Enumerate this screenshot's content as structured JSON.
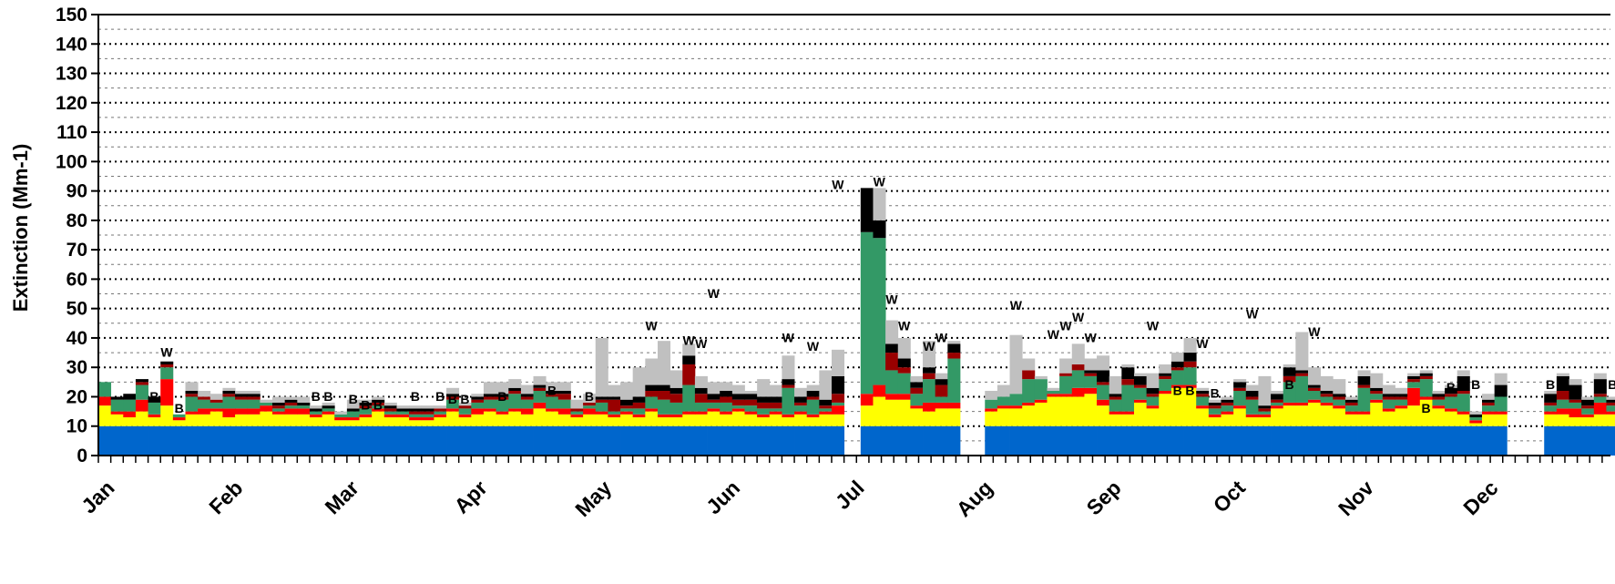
{
  "chart_data": {
    "type": "bar",
    "stacked": true,
    "ylabel": "Extinction (Mm-1)",
    "xlabel": "",
    "ylim": [
      0,
      150
    ],
    "yticks": [
      0,
      10,
      20,
      30,
      40,
      50,
      60,
      70,
      80,
      90,
      100,
      110,
      120,
      130,
      140,
      150
    ],
    "grid": true,
    "legend": "none",
    "months": [
      {
        "label": "Jan",
        "day": 1
      },
      {
        "label": "Feb",
        "day": 32
      },
      {
        "label": "Mar",
        "day": 60
      },
      {
        "label": "Apr",
        "day": 91
      },
      {
        "label": "May",
        "day": 121
      },
      {
        "label": "Jun",
        "day": 152
      },
      {
        "label": "Jul",
        "day": 182
      },
      {
        "label": "Aug",
        "day": 213
      },
      {
        "label": "Sep",
        "day": 244
      },
      {
        "label": "Oct",
        "day": 274
      },
      {
        "label": "Nov",
        "day": 305
      },
      {
        "label": "Dec",
        "day": 335
      }
    ],
    "sample_days": [
      1,
      4,
      7,
      10,
      13,
      16,
      19,
      22,
      25,
      28,
      31,
      34,
      37,
      40,
      43,
      46,
      49,
      52,
      55,
      58,
      61,
      64,
      67,
      70,
      73,
      76,
      79,
      82,
      85,
      88,
      91,
      94,
      97,
      100,
      103,
      106,
      109,
      112,
      115,
      118,
      121,
      124,
      127,
      130,
      133,
      136,
      139,
      142,
      145,
      148,
      151,
      154,
      157,
      160,
      163,
      166,
      169,
      172,
      175,
      178,
      185,
      188,
      191,
      194,
      197,
      200,
      203,
      206,
      215,
      218,
      221,
      224,
      227,
      230,
      233,
      236,
      239,
      242,
      245,
      248,
      251,
      254,
      257,
      260,
      263,
      266,
      269,
      272,
      275,
      278,
      281,
      284,
      287,
      290,
      293,
      296,
      299,
      302,
      305,
      308,
      311,
      314,
      317,
      320,
      323,
      326,
      329,
      332,
      335,
      338,
      350,
      353,
      356,
      359,
      362,
      365
    ],
    "series": [
      {
        "color": "#0066CC",
        "values": [
          10,
          10,
          10,
          10,
          10,
          10,
          10,
          10,
          10,
          10,
          10,
          10,
          10,
          10,
          10,
          10,
          10,
          10,
          10,
          10,
          10,
          10,
          10,
          10,
          10,
          10,
          10,
          10,
          10,
          10,
          10,
          10,
          10,
          10,
          10,
          10,
          10,
          10,
          10,
          10,
          10,
          10,
          10,
          10,
          10,
          10,
          10,
          10,
          10,
          10,
          10,
          10,
          10,
          10,
          10,
          10,
          10,
          10,
          10,
          10,
          10,
          10,
          10,
          10,
          10,
          10,
          10,
          10,
          10,
          10,
          10,
          10,
          10,
          10,
          10,
          10,
          10,
          10,
          10,
          10,
          10,
          10,
          10,
          10,
          10,
          10,
          10,
          10,
          10,
          10,
          10,
          10,
          10,
          10,
          10,
          10,
          10,
          10,
          10,
          10,
          10,
          10,
          10,
          10,
          10,
          10,
          10,
          10,
          10,
          10,
          10,
          10,
          10,
          10,
          10,
          10
        ]
      },
      {
        "color": "#FFFF00",
        "values": [
          7,
          4,
          3,
          5,
          3,
          7,
          2,
          4,
          4,
          5,
          3,
          4,
          4,
          5,
          4,
          4,
          4,
          3,
          4,
          2,
          2,
          3,
          5,
          3,
          3,
          2,
          2,
          3,
          5,
          3,
          4,
          5,
          4,
          5,
          4,
          6,
          5,
          4,
          3,
          4,
          4,
          3,
          4,
          3,
          5,
          3,
          3,
          4,
          4,
          5,
          4,
          5,
          4,
          3,
          4,
          3,
          4,
          3,
          4,
          4,
          7,
          10,
          9,
          9,
          6,
          5,
          6,
          6,
          5,
          6,
          6,
          7,
          8,
          10,
          10,
          10,
          11,
          7,
          4,
          4,
          8,
          6,
          11,
          13,
          13,
          6,
          3,
          4,
          6,
          3,
          3,
          6,
          7,
          7,
          8,
          7,
          6,
          4,
          4,
          8,
          5,
          6,
          7,
          9,
          6,
          5,
          4,
          1,
          4,
          4,
          4,
          4,
          3,
          3,
          4,
          4
        ]
      },
      {
        "color": "#FF0000",
        "values": [
          3,
          1,
          2,
          4,
          1,
          9,
          1,
          1,
          2,
          1,
          3,
          2,
          2,
          2,
          1,
          2,
          2,
          1,
          1,
          1,
          1,
          1,
          1,
          1,
          1,
          1,
          1,
          1,
          1,
          1,
          2,
          1,
          1,
          1,
          2,
          2,
          1,
          2,
          1,
          2,
          1,
          1,
          1,
          1,
          1,
          1,
          1,
          1,
          1,
          1,
          1,
          1,
          1,
          1,
          1,
          1,
          1,
          1,
          1,
          3,
          4,
          4,
          2,
          2,
          1,
          3,
          2,
          2,
          1,
          1,
          1,
          1,
          1,
          1,
          1,
          3,
          2,
          2,
          1,
          1,
          1,
          1,
          1,
          1,
          1,
          1,
          1,
          1,
          1,
          1,
          1,
          1,
          1,
          1,
          1,
          1,
          1,
          1,
          1,
          1,
          1,
          1,
          6,
          1,
          1,
          1,
          1,
          1,
          1,
          1,
          1,
          2,
          3,
          1,
          4,
          1
        ]
      },
      {
        "color": "#339966",
        "values": [
          5,
          4,
          4,
          5,
          4,
          4,
          1,
          5,
          3,
          2,
          4,
          3,
          3,
          1,
          1,
          1,
          1,
          1,
          1,
          1,
          2,
          2,
          1,
          1,
          1,
          1,
          1,
          1,
          3,
          2,
          2,
          3,
          4,
          5,
          3,
          4,
          4,
          3,
          1,
          1,
          3,
          1,
          1,
          2,
          4,
          5,
          4,
          9,
          3,
          2,
          3,
          1,
          2,
          2,
          1,
          9,
          2,
          5,
          1,
          1,
          55,
          50,
          8,
          7,
          4,
          8,
          2,
          15,
          3,
          3,
          4,
          8,
          7,
          1,
          6,
          6,
          4,
          5,
          4,
          9,
          4,
          3,
          4,
          5,
          6,
          3,
          2,
          2,
          5,
          5,
          1,
          1,
          7,
          9,
          3,
          2,
          2,
          2,
          8,
          2,
          3,
          2,
          2,
          6,
          2,
          4,
          6,
          1,
          2,
          5,
          2,
          3,
          2,
          2,
          2,
          2
        ]
      },
      {
        "color": "#990000",
        "values": [
          0,
          0,
          0,
          1,
          0,
          1,
          0,
          1,
          1,
          1,
          1,
          1,
          1,
          0,
          1,
          1,
          0,
          0,
          0,
          0,
          0,
          1,
          1,
          1,
          0,
          1,
          1,
          1,
          1,
          1,
          1,
          1,
          1,
          1,
          1,
          1,
          1,
          2,
          1,
          1,
          1,
          4,
          1,
          2,
          2,
          3,
          3,
          7,
          3,
          1,
          2,
          2,
          2,
          2,
          2,
          1,
          1,
          1,
          1,
          3,
          0,
          0,
          6,
          2,
          2,
          2,
          4,
          2,
          0,
          0,
          0,
          3,
          0,
          0,
          1,
          2,
          1,
          1,
          1,
          2,
          1,
          1,
          1,
          1,
          2,
          1,
          1,
          1,
          1,
          1,
          1,
          1,
          2,
          1,
          1,
          1,
          1,
          1,
          1,
          1,
          1,
          1,
          1,
          1,
          1,
          1,
          1,
          0,
          1,
          0,
          1,
          3,
          1,
          1,
          1,
          1
        ]
      },
      {
        "color": "#000000",
        "values": [
          0,
          1,
          2,
          1,
          2,
          1,
          0,
          1,
          0,
          0,
          1,
          1,
          1,
          0,
          1,
          1,
          1,
          1,
          1,
          0,
          1,
          1,
          1,
          1,
          1,
          1,
          1,
          0,
          1,
          0,
          1,
          1,
          1,
          1,
          1,
          1,
          1,
          1,
          0,
          0,
          1,
          1,
          2,
          2,
          2,
          2,
          2,
          3,
          2,
          2,
          2,
          2,
          2,
          2,
          2,
          2,
          2,
          2,
          2,
          6,
          15,
          6,
          3,
          3,
          2,
          2,
          2,
          3,
          0,
          0,
          0,
          0,
          0,
          0,
          0,
          0,
          1,
          4,
          1,
          4,
          3,
          2,
          1,
          2,
          3,
          1,
          1,
          1,
          2,
          2,
          1,
          2,
          3,
          1,
          1,
          1,
          1,
          1,
          3,
          1,
          1,
          1,
          1,
          1,
          1,
          2,
          5,
          1,
          1,
          4,
          3,
          5,
          5,
          2,
          5,
          1
        ]
      },
      {
        "color": "#C0C0C0",
        "values": [
          0,
          0,
          0,
          0,
          0,
          0,
          0,
          3,
          2,
          2,
          1,
          1,
          1,
          1,
          2,
          1,
          2,
          1,
          1,
          1,
          3,
          1,
          1,
          1,
          1,
          1,
          1,
          1,
          2,
          1,
          1,
          4,
          4,
          3,
          3,
          3,
          3,
          3,
          3,
          3,
          20,
          4,
          6,
          10,
          9,
          15,
          6,
          4,
          4,
          4,
          3,
          3,
          1,
          6,
          4,
          8,
          3,
          2,
          10,
          9,
          0,
          11,
          8,
          7,
          2,
          9,
          2,
          1,
          3,
          4,
          20,
          4,
          1,
          1,
          5,
          7,
          4,
          5,
          6,
          1,
          1,
          5,
          3,
          3,
          5,
          1,
          1,
          1,
          1,
          2,
          10,
          1,
          1,
          13,
          6,
          5,
          5,
          1,
          2,
          5,
          3,
          2,
          1,
          1,
          1,
          1,
          2,
          1,
          2,
          4,
          1,
          1,
          2,
          1,
          2,
          1
        ]
      }
    ],
    "annotations": [
      {
        "day": 16,
        "value": 33,
        "text": "W"
      },
      {
        "day": 13,
        "value": 18,
        "text": "B"
      },
      {
        "day": 19,
        "value": 14,
        "text": "B"
      },
      {
        "day": 52,
        "value": 18,
        "text": "B"
      },
      {
        "day": 55,
        "value": 18,
        "text": "B"
      },
      {
        "day": 61,
        "value": 17,
        "text": "B"
      },
      {
        "day": 64,
        "value": 15,
        "text": "B"
      },
      {
        "day": 67,
        "value": 15,
        "text": "B"
      },
      {
        "day": 76,
        "value": 18,
        "text": "B"
      },
      {
        "day": 82,
        "value": 18,
        "text": "B"
      },
      {
        "day": 85,
        "value": 17,
        "text": "B"
      },
      {
        "day": 88,
        "value": 17,
        "text": "B"
      },
      {
        "day": 97,
        "value": 18,
        "text": "B"
      },
      {
        "day": 109,
        "value": 20,
        "text": "B"
      },
      {
        "day": 118,
        "value": 18,
        "text": "B"
      },
      {
        "day": 133,
        "value": 42,
        "text": "W"
      },
      {
        "day": 142,
        "value": 37,
        "text": "W"
      },
      {
        "day": 145,
        "value": 36,
        "text": "W"
      },
      {
        "day": 148,
        "value": 53,
        "text": "W"
      },
      {
        "day": 166,
        "value": 38,
        "text": "W"
      },
      {
        "day": 172,
        "value": 35,
        "text": "W"
      },
      {
        "day": 178,
        "value": 90,
        "text": "W"
      },
      {
        "day": 188,
        "value": 91,
        "text": "W"
      },
      {
        "day": 191,
        "value": 51,
        "text": "W"
      },
      {
        "day": 194,
        "value": 42,
        "text": "W"
      },
      {
        "day": 200,
        "value": 35,
        "text": "W"
      },
      {
        "day": 203,
        "value": 38,
        "text": "W"
      },
      {
        "day": 221,
        "value": 49,
        "text": "W"
      },
      {
        "day": 230,
        "value": 39,
        "text": "W"
      },
      {
        "day": 233,
        "value": 42,
        "text": "W"
      },
      {
        "day": 236,
        "value": 45,
        "text": "W"
      },
      {
        "day": 239,
        "value": 38,
        "text": "W"
      },
      {
        "day": 254,
        "value": 42,
        "text": "W"
      },
      {
        "day": 260,
        "value": 20,
        "text": "B"
      },
      {
        "day": 263,
        "value": 20,
        "text": "B"
      },
      {
        "day": 266,
        "value": 36,
        "text": "W"
      },
      {
        "day": 269,
        "value": 19,
        "text": "B"
      },
      {
        "day": 278,
        "value": 46,
        "text": "W"
      },
      {
        "day": 287,
        "value": 22,
        "text": "B"
      },
      {
        "day": 293,
        "value": 40,
        "text": "W"
      },
      {
        "day": 320,
        "value": 14,
        "text": "B"
      },
      {
        "day": 326,
        "value": 21,
        "text": "B"
      },
      {
        "day": 332,
        "value": 22,
        "text": "B"
      },
      {
        "day": 350,
        "value": 22,
        "text": "B"
      },
      {
        "day": 356,
        "value": 20,
        "text": "B"
      },
      {
        "day": 365,
        "value": 22,
        "text": "B"
      }
    ]
  }
}
